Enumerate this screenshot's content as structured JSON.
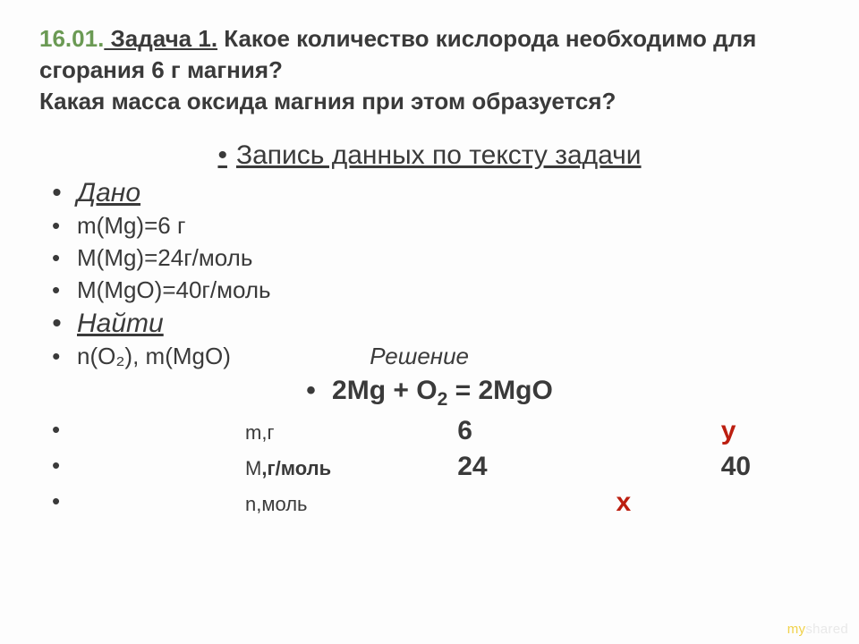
{
  "title": {
    "date": "16.01.",
    "label": " Задача 1.",
    "rest": " Какое количество кислорода необходимо для сгорания 6 г магния?\nКакая масса оксида магния при этом образуется?"
  },
  "subtitle": "Запись данных по тексту задачи",
  "given": {
    "head": "Дано",
    "items": [
      "m(Mg)=6 г",
      "M(Mg)=24г/моль",
      "M(MgO)=40г/моль"
    ]
  },
  "find": {
    "head": "Найти",
    "lhs": "n(O₂), m(MgO)",
    "rhs": "Решение"
  },
  "equation": {
    "lhs": "2Mg  +  O",
    "sub": "2",
    "rhs": "  =  2MgO"
  },
  "table": {
    "rows": [
      {
        "label": "m,г",
        "c1": "6",
        "c2": "",
        "c3": "y",
        "c3_red": true,
        "c1_red": false
      },
      {
        "label": "M,г/моль",
        "c1": "24",
        "c2": "",
        "c3": "40",
        "c3_red": false,
        "c1_red": false
      },
      {
        "label": "n,моль",
        "c1": "",
        "c2": "x",
        "c3": "",
        "c2_red": true
      }
    ]
  },
  "watermark": "myshared",
  "colors": {
    "date": "#6b9a54",
    "text": "#3a3a3a",
    "accent_red": "#bc1e10",
    "watermark": "#e9e9e9",
    "background": "#fdfdfd"
  },
  "fonts": {
    "title_size_pt": 26,
    "body_size_pt": 26,
    "heading_size_pt": 30,
    "equation_size_pt": 30,
    "row_label_size_pt": 22
  }
}
